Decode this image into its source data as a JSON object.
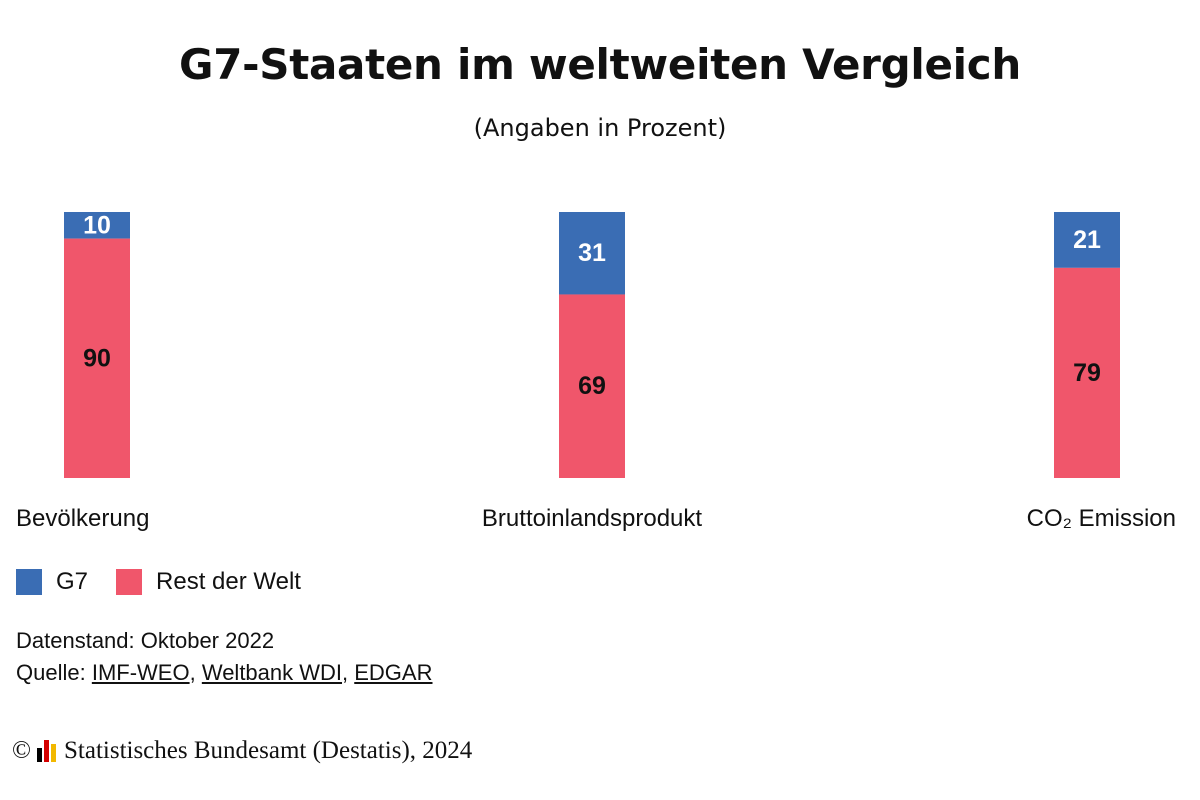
{
  "title": "G7-Staaten im weltweiten Vergleich",
  "subtitle": "(Angaben in Prozent)",
  "chart_data": {
    "type": "bar",
    "stacked": true,
    "categories": [
      "Bevölkerung",
      "Bruttoinlandsprodukt",
      "CO₂ Emission"
    ],
    "series": [
      {
        "name": "G7",
        "values": [
          10,
          31,
          21
        ],
        "color": "#3a6db4",
        "label_color": "#ffffff"
      },
      {
        "name": "Rest der Welt",
        "values": [
          90,
          69,
          79
        ],
        "color": "#f0566b",
        "label_color": "#111111"
      }
    ],
    "ylim": [
      0,
      100
    ],
    "grid": false,
    "legend_position": "bottom-left"
  },
  "footer": {
    "datenstand": "Datenstand: Oktober 2022",
    "quelle_prefix": "Quelle: ",
    "sources": [
      "IMF-WEO",
      "Weltbank WDI",
      "EDGAR"
    ],
    "separator": ", ",
    "copyright_symbol": "©",
    "copyright_text": "Statistisches Bundesamt (Destatis), 2024",
    "logo_colors": [
      "#000000",
      "#d40000",
      "#f2b800"
    ]
  }
}
